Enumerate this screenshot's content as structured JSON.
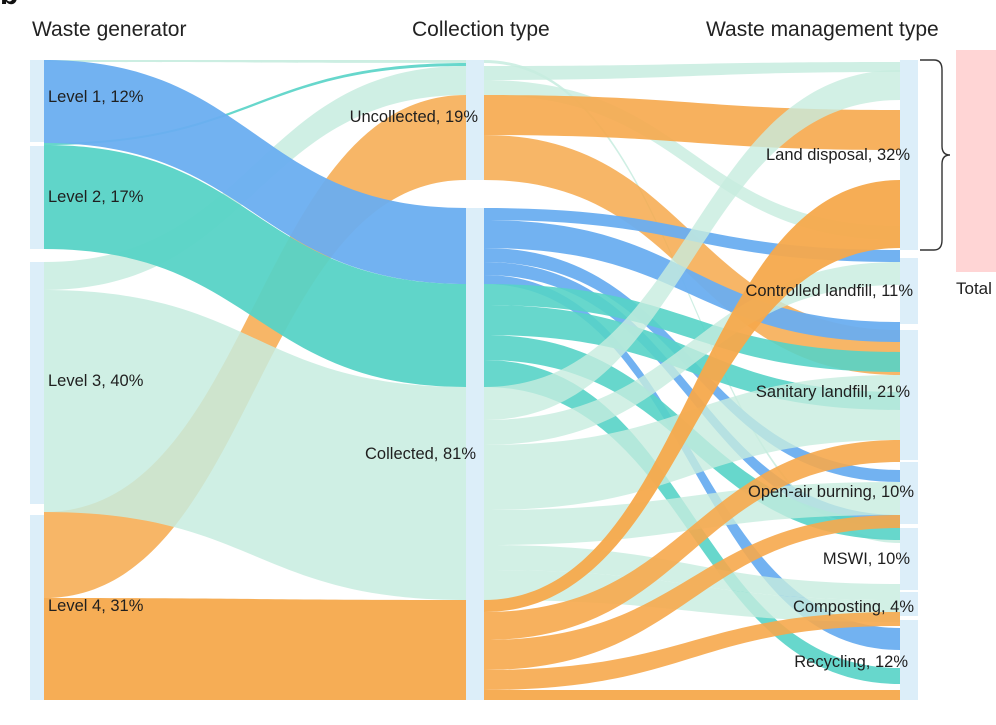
{
  "panel_label": "b",
  "headers": {
    "generator": "Waste generator",
    "collection": "Collection type",
    "management": "Waste management type"
  },
  "generators": [
    {
      "label": "Level 1, 12%",
      "share": 12,
      "color": "#6aaef0"
    },
    {
      "label": "Level 2, 17%",
      "share": 17,
      "color": "#57d3c6"
    },
    {
      "label": "Level 3, 40%",
      "share": 40,
      "color": "#c7ecdf"
    },
    {
      "label": "Level 4, 31%",
      "share": 31,
      "color": "#f6a94c"
    }
  ],
  "collection": [
    {
      "label": "Uncollected, 19%",
      "share": 19
    },
    {
      "label": "Collected, 81%",
      "share": 81
    }
  ],
  "management": [
    {
      "label": "Land disposal, 32%",
      "share": 32
    },
    {
      "label": "Controlled landfill, 11%",
      "share": 11
    },
    {
      "label": "Sanitary landfill, 21%",
      "share": 21
    },
    {
      "label": "Open-air burning, 10%",
      "share": 10
    },
    {
      "label": "MSWI, 10%",
      "share": 10
    },
    {
      "label": "Composting, 4%",
      "share": 4
    },
    {
      "label": "Recycling, 12%",
      "share": 12
    }
  ],
  "total_label": "Total",
  "colors": {
    "node": "#dceef9",
    "total_bar": "#ffd3d3",
    "bracket": "#333333"
  }
}
